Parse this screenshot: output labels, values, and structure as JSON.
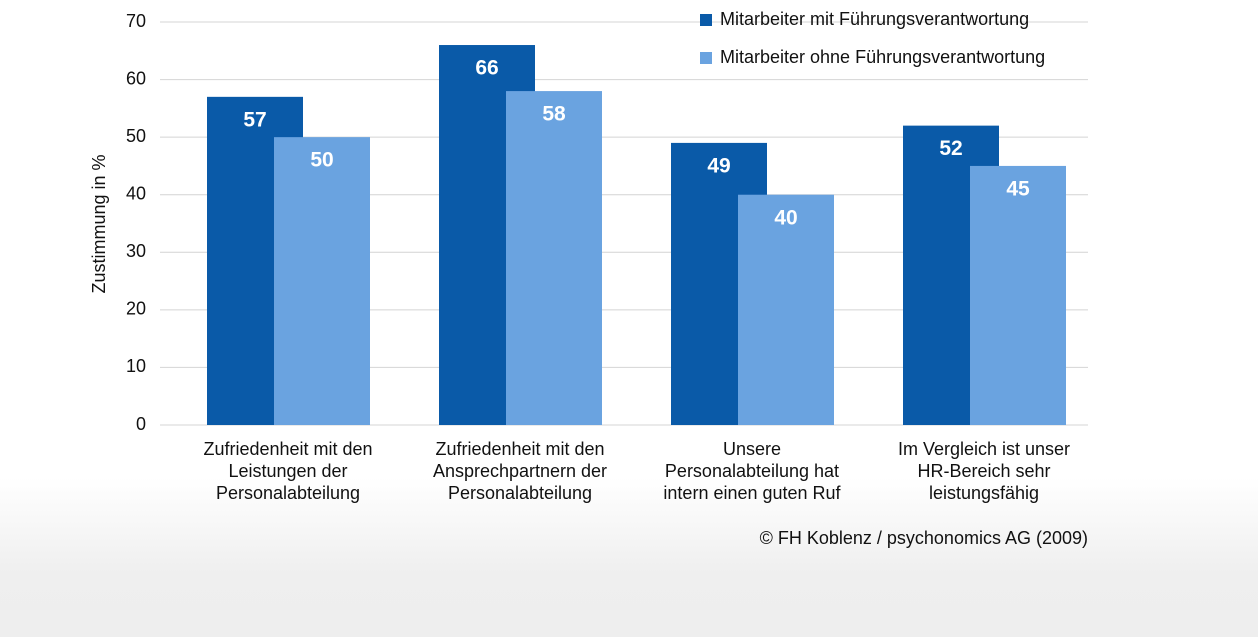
{
  "chart_data": {
    "type": "bar",
    "categories": [
      "Zufriedenheit mit den\nLeistungen der\nPersonalabteilung",
      "Zufriedenheit mit den\nAnsprechpartnern der\nPersonalabteilung",
      "Unsere\nPersonalabteilung hat\nintern einen guten Ruf",
      "Im Vergleich ist unser\nHR-Bereich sehr\nleistungsfähig"
    ],
    "series": [
      {
        "name": "Mitarbeiter mit Führungsverantwortung",
        "color": "#0a5aa8",
        "values": [
          57,
          66,
          49,
          52
        ]
      },
      {
        "name": "Mitarbeiter ohne Führungsverantwortung",
        "color": "#6aa3e0",
        "values": [
          50,
          58,
          40,
          45
        ]
      }
    ],
    "y_label": "Zustimmung in %",
    "annotation": "© FH Koblenz / psychonomics AG (2009)",
    "ylim": [
      0,
      70
    ],
    "yticks": [
      0,
      10,
      20,
      30,
      40,
      50,
      60,
      70
    ],
    "grid": true,
    "legend": "top-right"
  }
}
